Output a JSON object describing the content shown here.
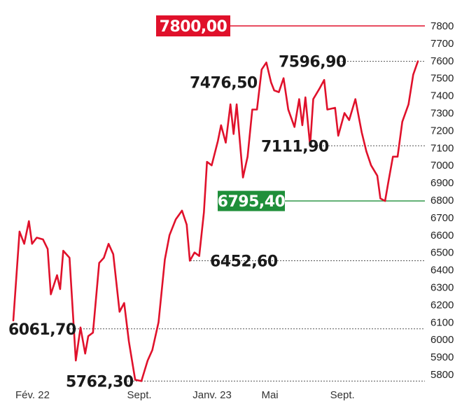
{
  "chart_data": {
    "type": "line",
    "title": "",
    "xlabel": "",
    "ylabel": "",
    "ylim": [
      5750,
      7850
    ],
    "yticks": [
      5800,
      5900,
      6000,
      6100,
      6200,
      6300,
      6400,
      6500,
      6600,
      6700,
      6800,
      6900,
      7000,
      7100,
      7200,
      7300,
      7400,
      7500,
      7600,
      7700,
      7800
    ],
    "x_ticks": [
      {
        "label": "Fév. 22",
        "t": 3
      },
      {
        "label": "Sept.",
        "t": 80
      },
      {
        "label": "Janv. 23",
        "t": 122
      },
      {
        "label": "Mai",
        "t": 166
      },
      {
        "label": "Sept.",
        "t": 210
      }
    ],
    "series_color": "#e0112b",
    "grid": false,
    "values": [
      [
        0,
        6110
      ],
      [
        4,
        6620
      ],
      [
        7,
        6550
      ],
      [
        10,
        6680
      ],
      [
        12,
        6550
      ],
      [
        15,
        6585
      ],
      [
        19,
        6575
      ],
      [
        22,
        6520
      ],
      [
        24,
        6260
      ],
      [
        28,
        6370
      ],
      [
        30,
        6290
      ],
      [
        32,
        6510
      ],
      [
        36,
        6470
      ],
      [
        40,
        5880
      ],
      [
        43,
        6070
      ],
      [
        46,
        5920
      ],
      [
        48,
        6020
      ],
      [
        51,
        6040
      ],
      [
        55,
        6440
      ],
      [
        58,
        6470
      ],
      [
        61,
        6550
      ],
      [
        64,
        6490
      ],
      [
        68,
        6160
      ],
      [
        71,
        6210
      ],
      [
        74,
        5990
      ],
      [
        78,
        5770
      ],
      [
        82,
        5762.3
      ],
      [
        86,
        5880
      ],
      [
        89,
        5940
      ],
      [
        93,
        6100
      ],
      [
        97,
        6460
      ],
      [
        100,
        6600
      ],
      [
        104,
        6690
      ],
      [
        108,
        6740
      ],
      [
        111,
        6660
      ],
      [
        113,
        6452.6
      ],
      [
        116,
        6500
      ],
      [
        119,
        6480
      ],
      [
        122,
        6730
      ],
      [
        124,
        7020
      ],
      [
        127,
        7000
      ],
      [
        131,
        7140
      ],
      [
        133,
        7230
      ],
      [
        136,
        7130
      ],
      [
        139,
        7350
      ],
      [
        141,
        7180
      ],
      [
        143,
        7350
      ],
      [
        147,
        6930
      ],
      [
        150,
        7050
      ],
      [
        153,
        7320
      ],
      [
        156,
        7320
      ],
      [
        159,
        7550
      ],
      [
        162,
        7590
      ],
      [
        165,
        7476.5
      ],
      [
        167,
        7430
      ],
      [
        170,
        7420
      ],
      [
        173,
        7500
      ],
      [
        176,
        7320
      ],
      [
        180,
        7220
      ],
      [
        183,
        7380
      ],
      [
        185,
        7230
      ],
      [
        187,
        7390
      ],
      [
        190,
        7111.9
      ],
      [
        192,
        7380
      ],
      [
        196,
        7440
      ],
      [
        199,
        7490
      ],
      [
        201,
        7320
      ],
      [
        206,
        7330
      ],
      [
        208,
        7170
      ],
      [
        212,
        7300
      ],
      [
        215,
        7260
      ],
      [
        219,
        7380
      ],
      [
        223,
        7190
      ],
      [
        226,
        7080
      ],
      [
        229,
        7000
      ],
      [
        233,
        6940
      ],
      [
        235,
        6810
      ],
      [
        238,
        6795.4
      ],
      [
        240,
        6900
      ],
      [
        243,
        7050
      ],
      [
        246,
        7050
      ],
      [
        249,
        7250
      ],
      [
        253,
        7350
      ],
      [
        256,
        7520
      ],
      [
        259,
        7596.9
      ]
    ],
    "annotations": [
      {
        "label": "7800,00",
        "value": 7800,
        "style": "badge",
        "color": "#e0112b",
        "line_color": "#e0112b",
        "line_style": "solid"
      },
      {
        "label": "7596,90",
        "value": 7596.9,
        "style": "text",
        "line_style": "dotted"
      },
      {
        "label": "7476,50",
        "value": 7476.5,
        "style": "text",
        "line_style": "none"
      },
      {
        "label": "7111,90",
        "value": 7111.9,
        "style": "text",
        "line_style": "dotted"
      },
      {
        "label": "6795,40",
        "value": 6795.4,
        "style": "badge",
        "color": "#1f8f3a",
        "line_color": "#1f8f3a",
        "line_style": "solid"
      },
      {
        "label": "6452,60",
        "value": 6452.6,
        "style": "text",
        "line_style": "dotted"
      },
      {
        "label": "6061,70",
        "value": 6061.7,
        "style": "text",
        "line_style": "dotted"
      },
      {
        "label": "5762,30",
        "value": 5762.3,
        "style": "text",
        "line_style": "dotted"
      }
    ]
  }
}
